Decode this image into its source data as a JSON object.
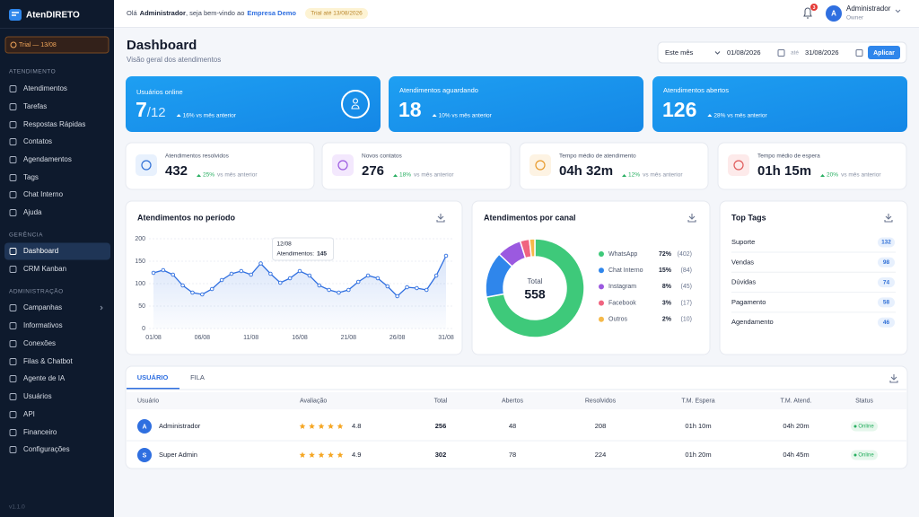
{
  "sidebar": {
    "brand": "AtenDIRETO",
    "trial": "Trial — 13/08",
    "sections": [
      {
        "title": "ATENDIMENTO",
        "items": [
          "Atendimentos",
          "Tarefas",
          "Respostas Rápidas",
          "Contatos",
          "Agendamentos",
          "Tags",
          "Chat Interno",
          "Ajuda"
        ]
      },
      {
        "title": "GERÊNCIA",
        "items": [
          "Dashboard",
          "CRM Kanban"
        ]
      },
      {
        "title": "ADMINISTRAÇÃO",
        "items": [
          "Campanhas",
          "Informativos",
          "Conexões",
          "Filas & Chatbot",
          "Agente de IA",
          "Usuários",
          "API",
          "Financeiro",
          "Configurações"
        ]
      }
    ],
    "version": "v1.1.0"
  },
  "header": {
    "greeting": "Olá",
    "user": "Administrador",
    "welcome": ", seja bem-vindo ao",
    "company": "Empresa Demo",
    "trial_badge": "Trial até 13/08/2026",
    "notifications": 3,
    "avatar": "A",
    "name": "Administrador",
    "role": "Owner"
  },
  "page": {
    "title": "Dashboard",
    "subtitle": "Visão geral dos atendimentos",
    "filter": {
      "period": "Este mês",
      "from": "01/08/2026",
      "sep": "até",
      "to": "31/08/2026",
      "button": "Aplicar"
    }
  },
  "highlight_cards": [
    {
      "label": "Usuários online",
      "value": 7,
      "total": "/12",
      "delta": "16% vs mês anterior"
    },
    {
      "label": "Atendimentos aguardando",
      "value": 18,
      "delta": "10% vs mês anterior"
    },
    {
      "label": "Atendimentos abertos",
      "value": 126,
      "delta": "28% vs mês anterior"
    }
  ],
  "stat_cards": [
    {
      "label": "Atendimentos resolvidos",
      "value": 432,
      "delta": "25%",
      "note": "vs mês anterior"
    },
    {
      "label": "Novos contatos",
      "value": 276,
      "delta": "18%",
      "note": "vs mês anterior"
    },
    {
      "label": "Tempo médio de atendimento",
      "value": "04h 32m",
      "delta": "12%",
      "note": "vs mês anterior"
    },
    {
      "label": "Tempo médio de espera",
      "value": "01h 15m",
      "delta": "20%",
      "note": "vs mês anterior"
    }
  ],
  "chart_data": [
    {
      "type": "line",
      "title": "Atendimentos no período",
      "categories": [
        "01/08",
        null,
        null,
        null,
        null,
        "06/08",
        null,
        null,
        null,
        null,
        "11/08",
        null,
        null,
        null,
        null,
        "16/08",
        null,
        null,
        null,
        null,
        "21/08",
        null,
        null,
        null,
        null,
        "26/08",
        null,
        null,
        null,
        null,
        "31/08"
      ],
      "values": [
        124,
        130,
        120,
        96,
        80,
        76,
        88,
        108,
        122,
        128,
        120,
        145,
        122,
        102,
        112,
        128,
        118,
        96,
        86,
        80,
        86,
        104,
        118,
        112,
        94,
        72,
        92,
        90,
        86,
        118,
        162
      ],
      "color": "#2f6fe0",
      "ylim": [
        0,
        200
      ],
      "yticks": [
        0,
        50,
        100,
        150,
        200
      ],
      "grid": true,
      "tooltip": {
        "title": "12/08",
        "label": "Atendimentos:",
        "value": 145
      }
    },
    {
      "type": "pie",
      "title": "Atendimentos por canal",
      "center_label": "Total",
      "total": 558,
      "categories": [
        "WhatsApp",
        "Chat Interno",
        "Instagram",
        "Facebook",
        "Outros"
      ],
      "values": [
        402,
        84,
        45,
        17,
        10
      ],
      "value_labels": [
        "(402)",
        "(84)",
        "(45)",
        "(17)",
        "(10)"
      ],
      "percent_labels": [
        "72%",
        "15%",
        "8%",
        "3%",
        "2%"
      ],
      "colors": [
        "#3ec97a",
        "#2f86eb",
        "#9b59e0",
        "#f06480",
        "#f5b94a"
      ]
    }
  ],
  "top_tags": {
    "title": "Top Tags",
    "items": [
      {
        "name": "Suporte",
        "count": 132
      },
      {
        "name": "Vendas",
        "count": 98
      },
      {
        "name": "Dúvidas",
        "count": 74
      },
      {
        "name": "Pagamento",
        "count": 58
      },
      {
        "name": "Agendamento",
        "count": 46
      }
    ]
  },
  "table": {
    "tabs": [
      "USUÁRIO",
      "FILA"
    ],
    "columns": [
      "Usuário",
      "Avaliação",
      "Total",
      "Abertos",
      "Resolvidos",
      "T.M. Espera",
      "T.M. Atend.",
      "Status"
    ],
    "rows": [
      {
        "avatar": "A",
        "name": "Administrador",
        "rating": 4.8,
        "total": 256,
        "open": 48,
        "resolved": 208,
        "wait": "01h 10m",
        "handle": "04h 20m",
        "status": "Online"
      },
      {
        "avatar": "S",
        "name": "Super Admin",
        "rating": 4.9,
        "total": 302,
        "open": 78,
        "resolved": 224,
        "wait": "01h 20m",
        "handle": "04h 45m",
        "status": "Online"
      }
    ]
  }
}
